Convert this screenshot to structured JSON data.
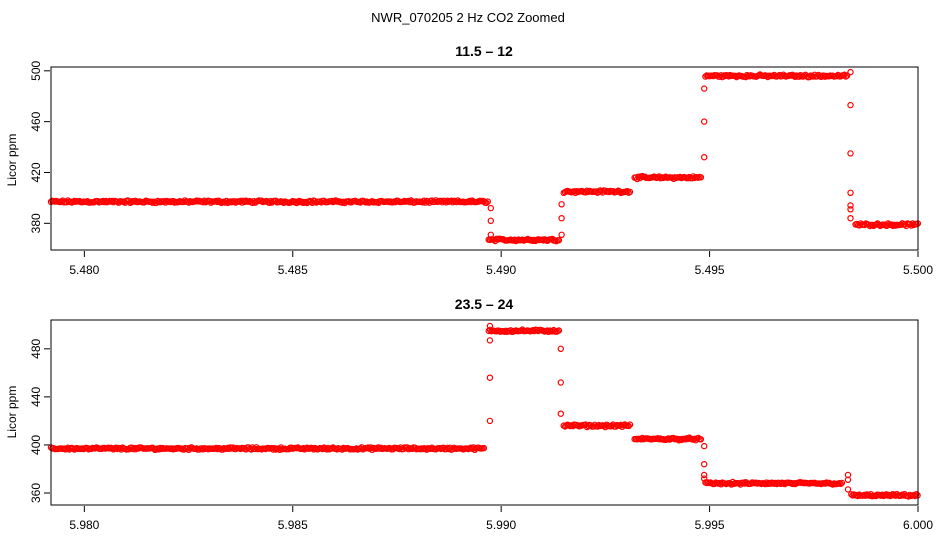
{
  "figure_title": "NWR_070205  2 Hz CO2 Zoomed",
  "colors": {
    "series": "#ff0000",
    "axis": "#000000",
    "background": "#ffffff"
  },
  "chart_data": [
    {
      "type": "scatter",
      "title": "11.5 – 12",
      "xlabel": "",
      "ylabel": "Licor ppm",
      "xlim": [
        5.4792,
        5.5
      ],
      "ylim": [
        359,
        503
      ],
      "x_ticks": [
        5.48,
        5.485,
        5.49,
        5.495,
        5.5
      ],
      "x_tick_labels": [
        "5.480",
        "5.485",
        "5.490",
        "5.495",
        "5.500"
      ],
      "y_ticks": [
        380,
        420,
        460,
        500
      ],
      "y_tick_labels": [
        "380",
        "420",
        "460",
        "500"
      ],
      "grid": false,
      "marker": "open-circle",
      "series": [
        {
          "color": "#ff0000",
          "segments": [
            {
              "x_start": 5.4792,
              "x_end": 5.4897,
              "y": 397
            },
            {
              "x_start": 5.4897,
              "x_end": 5.4914,
              "y": 367
            },
            {
              "x_start": 5.4915,
              "x_end": 5.4931,
              "y": 405
            },
            {
              "x_start": 5.4932,
              "x_end": 5.4948,
              "y": 416
            },
            {
              "x_start": 5.4949,
              "x_end": 5.4983,
              "y": 496
            },
            {
              "x_start": 5.4985,
              "x_end": 5.5,
              "y": 379
            }
          ],
          "transitions": [
            {
              "x": 5.48975,
              "y": [
                392,
                382,
                371
              ]
            },
            {
              "x": 5.49145,
              "y": [
                371,
                384,
                395
              ]
            },
            {
              "x": 5.49487,
              "y": [
                432,
                460,
                486
              ]
            },
            {
              "x": 5.49838,
              "y": [
                499,
                473,
                435,
                404,
                394,
                391,
                384
              ]
            }
          ]
        }
      ]
    },
    {
      "type": "scatter",
      "title": "23.5 – 24",
      "xlabel": "",
      "ylabel": "Licor ppm",
      "xlim": [
        5.9792,
        6.0
      ],
      "ylim": [
        350,
        504
      ],
      "x_ticks": [
        5.98,
        5.985,
        5.99,
        5.995,
        6.0
      ],
      "x_tick_labels": [
        "5.980",
        "5.985",
        "5.990",
        "5.995",
        "6.000"
      ],
      "y_ticks": [
        360,
        400,
        440,
        480
      ],
      "y_tick_labels": [
        "360",
        "400",
        "440",
        "480"
      ],
      "grid": false,
      "marker": "open-circle",
      "series": [
        {
          "color": "#ff0000",
          "segments": [
            {
              "x_start": 5.9792,
              "x_end": 5.9896,
              "y": 397
            },
            {
              "x_start": 5.9897,
              "x_end": 5.9914,
              "y": 495
            },
            {
              "x_start": 5.9915,
              "x_end": 5.9931,
              "y": 416
            },
            {
              "x_start": 5.9932,
              "x_end": 5.9948,
              "y": 405
            },
            {
              "x_start": 5.9949,
              "x_end": 5.9982,
              "y": 368
            },
            {
              "x_start": 5.9984,
              "x_end": 6.0,
              "y": 358
            }
          ],
          "transitions": [
            {
              "x": 5.98973,
              "y": [
                420,
                456,
                487,
                499
              ]
            },
            {
              "x": 5.99143,
              "y": [
                480,
                452,
                426
              ]
            },
            {
              "x": 5.99487,
              "y": [
                399,
                384,
                375,
                372
              ]
            },
            {
              "x": 5.99832,
              "y": [
                375,
                371,
                363
              ]
            }
          ]
        }
      ]
    }
  ]
}
